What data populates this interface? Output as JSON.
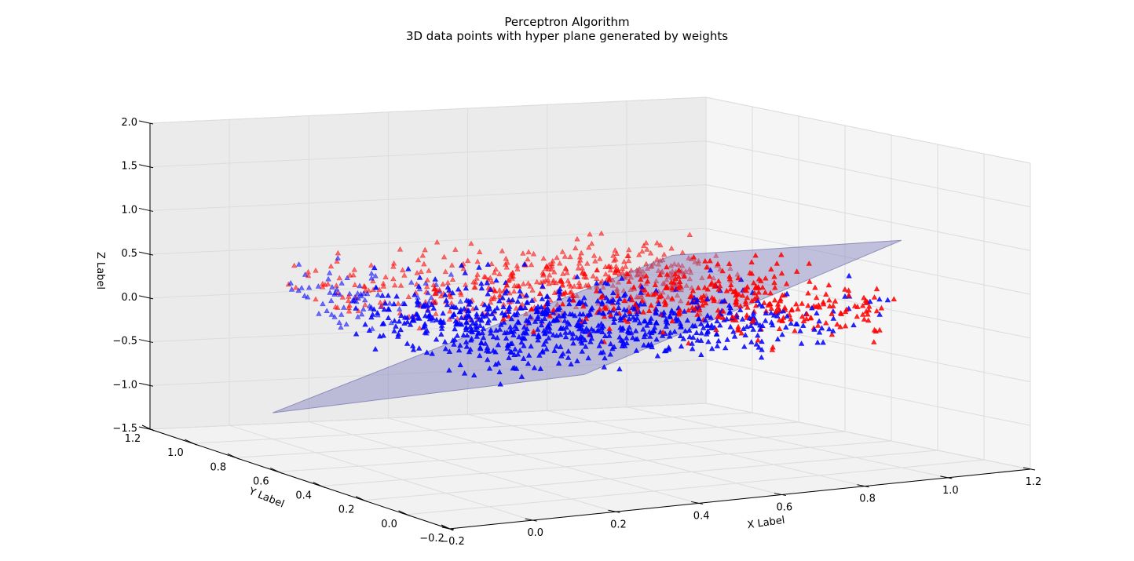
{
  "chart_data": {
    "type": "scatter",
    "title": "Perceptron Algorithm",
    "subtitle": "3D data points with hyper plane generated by weights",
    "xlabel": "X Label",
    "ylabel": "Y Label",
    "zlabel": "Z Label",
    "xlim": [
      -0.2,
      1.2
    ],
    "ylim": [
      -0.2,
      1.2
    ],
    "zlim": [
      -1.5,
      2.0
    ],
    "xticks": [
      "−0.2",
      "0.0",
      "0.2",
      "0.4",
      "0.6",
      "0.8",
      "1.0",
      "1.2"
    ],
    "yticks": [
      "−0.2",
      "0.0",
      "0.2",
      "0.4",
      "0.6",
      "0.8",
      "1.0",
      "1.2"
    ],
    "zticks": [
      "−1.5",
      "−1.0",
      "−0.5",
      "0.0",
      "0.5",
      "1.0",
      "1.5",
      "2.0"
    ],
    "grid": true,
    "marker": "triangle",
    "series": [
      {
        "color": "#0000ff",
        "x_range": [
          0.0,
          1.0
        ],
        "y_range": [
          0.0,
          1.0
        ],
        "z_range": [
          -0.1,
          0.6
        ],
        "side": "x + y < 1"
      },
      {
        "color": "#ff0000",
        "x_range": [
          0.0,
          1.0
        ],
        "y_range": [
          0.0,
          1.0
        ],
        "z_range": [
          -0.1,
          0.6
        ],
        "side": "x + y > 1"
      }
    ],
    "hyperplane": {
      "color": "#8080c0",
      "corners_xyz": [
        [
          0.0,
          1.0,
          -1.2
        ],
        [
          1.0,
          0.0,
          1.1
        ],
        [
          0.5,
          0.5,
          -0.55
        ],
        [
          1.0,
          1.0,
          0.35
        ]
      ]
    }
  }
}
